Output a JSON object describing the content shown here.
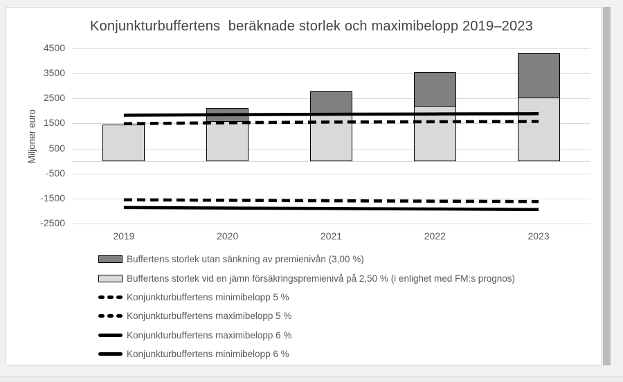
{
  "window": {
    "background": "#f1f1f1",
    "panel_bg": "#ffffff",
    "panel_border": "#d6d6d6",
    "scrollbar_color": "#bcbcbc",
    "gridline_color": "#d9d9d9",
    "title_color": "#444444",
    "axis_text_color": "#595959"
  },
  "chart_data": {
    "type": "bar",
    "title": "Konjunkturbuffertens  beräknade storlek och maximibelopp 2019–2023",
    "xlabel": "",
    "ylabel": "Miljoner euro",
    "categories": [
      "2019",
      "2020",
      "2021",
      "2022",
      "2023"
    ],
    "yticks": [
      4500,
      3500,
      2500,
      1500,
      500,
      -500,
      -1500,
      -2500
    ],
    "ylim": [
      -2500,
      4500
    ],
    "grid": true,
    "legend_position": "bottom-left",
    "bar_mode": "overlay",
    "bar_series": [
      {
        "name": "Buffertens storlek utan sänkning av premienivån (3,00 %)",
        "color": "#808080",
        "values": [
          1450,
          2110,
          2790,
          3550,
          4300
        ]
      },
      {
        "name": "Buffertens storlek vid en jämn försäkringspremienivå på 2,50 % (i enlighet med FM:s prognos)",
        "color": "#d9d9d9",
        "values": [
          1450,
          1590,
          1910,
          2190,
          2530
        ]
      }
    ],
    "line_series": [
      {
        "name": "Konjunkturbuffertens minimibelopp 5 %",
        "style": "dashed",
        "color": "#000000",
        "values": [
          -1550,
          -1570,
          -1590,
          -1605,
          -1620
        ]
      },
      {
        "name": "Konjunkturbuffertens maximibelopp 5 %",
        "style": "dashed",
        "color": "#000000",
        "values": [
          1490,
          1530,
          1555,
          1570,
          1580
        ]
      },
      {
        "name": "Konjunkturbuffertens maximibelopp 6 %",
        "style": "solid",
        "color": "#000000",
        "values": [
          1830,
          1850,
          1870,
          1880,
          1890
        ]
      },
      {
        "name": "Konjunkturbuffertens minimibelopp 6 %",
        "style": "solid",
        "color": "#000000",
        "values": [
          -1860,
          -1880,
          -1900,
          -1920,
          -1940
        ]
      }
    ]
  }
}
